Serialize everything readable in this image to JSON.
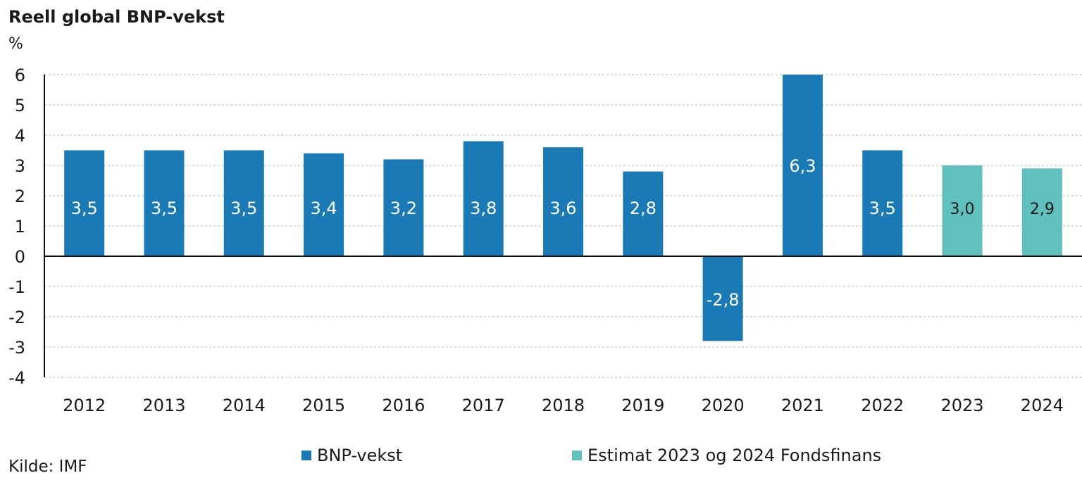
{
  "chart_data": {
    "type": "bar",
    "title": "Reell global BNP-vekst",
    "ylabel": "%",
    "ylim": [
      -4,
      6
    ],
    "yticks": [
      6,
      5,
      4,
      3,
      2,
      1,
      0,
      -1,
      -2,
      -3,
      -4
    ],
    "categories": [
      "2012",
      "2013",
      "2014",
      "2015",
      "2016",
      "2017",
      "2018",
      "2019",
      "2020",
      "2021",
      "2022",
      "2023",
      "2024"
    ],
    "values": [
      3.5,
      3.5,
      3.5,
      3.4,
      3.2,
      3.8,
      3.6,
      2.8,
      -2.8,
      6.3,
      3.5,
      3.0,
      2.9
    ],
    "labels": [
      "3,5",
      "3,5",
      "3,5",
      "3,4",
      "3,2",
      "3,8",
      "3,6",
      "2,8",
      "-2,8",
      "6,3",
      "3,5",
      "3,0",
      "2,9"
    ],
    "series_index": [
      0,
      0,
      0,
      0,
      0,
      0,
      0,
      0,
      0,
      0,
      0,
      1,
      1
    ],
    "series": [
      {
        "name": "BNP-vekst",
        "color": "#1a7ab6"
      },
      {
        "name": "Estimat 2023 og 2024 Fondsfinans",
        "color": "#5fc0bd"
      }
    ],
    "grid": true,
    "legend_position": "bottom-center",
    "source": "Kilde: IMF"
  }
}
